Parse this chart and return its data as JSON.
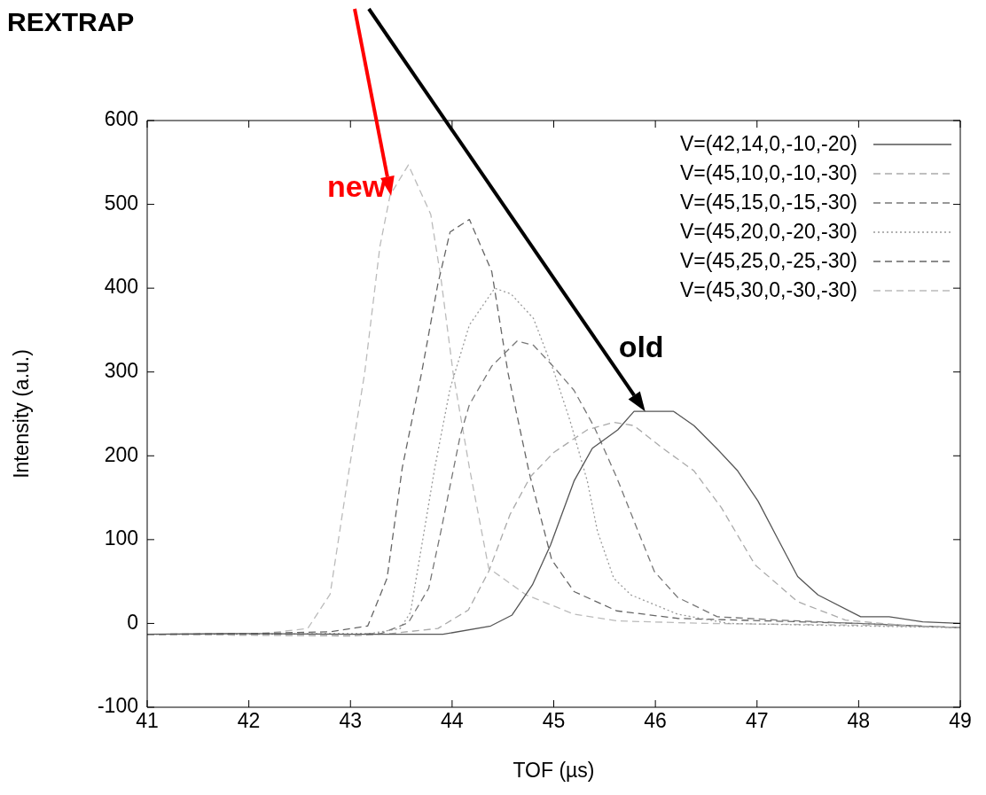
{
  "chart_data": {
    "type": "line",
    "title": "REXTRAP",
    "xlabel": "TOF (µs)",
    "ylabel": "Intensity (a.u.)",
    "xlim": [
      41,
      49
    ],
    "ylim": [
      -100,
      600
    ],
    "xticks": [
      41,
      42,
      43,
      44,
      45,
      46,
      47,
      48,
      49
    ],
    "yticks": [
      -100,
      0,
      100,
      200,
      300,
      400,
      500,
      600
    ],
    "legend": "top right",
    "marker": "none",
    "annotations": [
      {
        "text": "new",
        "x": 43.4,
        "y": 510
      },
      {
        "text": "old",
        "x": 45.9,
        "y": 253
      }
    ],
    "series": [
      {
        "name": "V=(42,14,0,-10,-20)",
        "color": "#555555",
        "line_style": "solid",
        "x": [
          41,
          42,
          43,
          43.91,
          44.38,
          44.59,
          44.79,
          44.97,
          45.2,
          45.38,
          45.63,
          45.79,
          46.18,
          46.38,
          46.61,
          46.81,
          47.01,
          47.2,
          47.4,
          47.6,
          48.02,
          48.3,
          48.63,
          49
        ],
        "values": [
          -13,
          -12,
          -13,
          -13,
          -3,
          10,
          46,
          94,
          170,
          209,
          231,
          253,
          253,
          236,
          208,
          182,
          146,
          102,
          56,
          34,
          8,
          8,
          2,
          0
        ]
      },
      {
        "name": "V=(45,10,0,-10,-30)",
        "color": "#aaaaaa",
        "line_style": "dashed",
        "x": [
          41,
          42,
          43,
          43.4,
          43.86,
          44.16,
          44.36,
          44.57,
          44.77,
          45.0,
          45.33,
          45.59,
          45.79,
          46.05,
          46.38,
          46.65,
          46.98,
          47.4,
          47.87,
          48.5,
          49
        ],
        "values": [
          -13,
          -14,
          -15,
          -12,
          -6,
          16,
          62,
          130,
          175,
          204,
          231,
          240,
          236,
          211,
          182,
          138,
          70,
          26,
          4,
          -3,
          -5
        ]
      },
      {
        "name": "V=(45,15,0,-15,-30)",
        "color": "#777777",
        "line_style": "dashed",
        "x": [
          41,
          42,
          43,
          43.3,
          43.57,
          43.77,
          43.89,
          44.08,
          44.17,
          44.39,
          44.64,
          44.8,
          45.0,
          45.2,
          45.4,
          45.62,
          45.83,
          45.99,
          46.22,
          46.61,
          47.2,
          48,
          49
        ],
        "values": [
          -13,
          -13,
          -13,
          -12,
          1,
          42,
          110,
          224,
          261,
          307,
          337,
          332,
          306,
          278,
          234,
          174,
          110,
          62,
          31,
          8,
          4,
          0,
          -5
        ]
      },
      {
        "name": "V=(45,20,0,-20,-30)",
        "color": "#999999",
        "line_style": "dotted",
        "x": [
          41,
          42,
          43,
          43.2,
          43.49,
          43.59,
          43.7,
          43.83,
          43.98,
          44.17,
          44.42,
          44.58,
          44.8,
          45.0,
          45.16,
          45.33,
          45.43,
          45.59,
          45.76,
          46.22,
          46.72,
          48,
          49
        ],
        "values": [
          -13,
          -13,
          -12,
          -12,
          -6,
          13,
          92,
          186,
          280,
          356,
          400,
          393,
          364,
          301,
          242,
          170,
          110,
          54,
          34,
          11,
          0,
          -3,
          -5
        ]
      },
      {
        "name": "V=(45,25,0,-25,-30)",
        "color": "#666666",
        "line_style": "dashed",
        "x": [
          41,
          42,
          42.8,
          43.17,
          43.36,
          43.51,
          43.7,
          43.86,
          43.98,
          44.17,
          44.39,
          44.55,
          44.76,
          44.98,
          45.2,
          45.62,
          46.22,
          48,
          49
        ],
        "values": [
          -13,
          -12,
          -10,
          -3,
          54,
          186,
          299,
          405,
          467,
          482,
          420,
          299,
          179,
          76,
          38,
          15,
          6,
          0,
          -5
        ]
      },
      {
        "name": "V=(45,30,0,-30,-30)",
        "color": "#bbbbbb",
        "line_style": "dashed",
        "x": [
          41,
          42,
          42.58,
          42.8,
          42.99,
          43.14,
          43.29,
          43.39,
          43.57,
          43.79,
          43.89,
          44.01,
          44.17,
          44.36,
          44.73,
          45.2,
          45.63,
          46.5,
          48,
          49
        ],
        "values": [
          -13,
          -14,
          -6,
          35,
          186,
          299,
          450,
          511,
          547,
          488,
          412,
          299,
          186,
          66,
          34,
          11,
          3,
          0,
          -2,
          -5
        ]
      }
    ]
  }
}
